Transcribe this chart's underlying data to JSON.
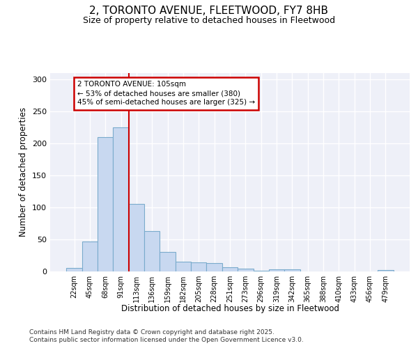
{
  "title": "2, TORONTO AVENUE, FLEETWOOD, FY7 8HB",
  "subtitle": "Size of property relative to detached houses in Fleetwood",
  "xlabel": "Distribution of detached houses by size in Fleetwood",
  "ylabel": "Number of detached properties",
  "bar_color": "#c8d8f0",
  "bar_edge_color": "#7aabcc",
  "background_color": "#eef0f8",
  "grid_color": "#ffffff",
  "categories": [
    "22sqm",
    "45sqm",
    "68sqm",
    "91sqm",
    "113sqm",
    "136sqm",
    "159sqm",
    "182sqm",
    "205sqm",
    "228sqm",
    "251sqm",
    "273sqm",
    "296sqm",
    "319sqm",
    "342sqm",
    "365sqm",
    "388sqm",
    "410sqm",
    "433sqm",
    "456sqm",
    "479sqm"
  ],
  "values": [
    5,
    47,
    210,
    225,
    105,
    63,
    30,
    15,
    14,
    13,
    6,
    4,
    1,
    3,
    3,
    0,
    0,
    0,
    0,
    0,
    2
  ],
  "red_line_x": 3.5,
  "annotation_line1": "2 TORONTO AVENUE: 105sqm",
  "annotation_line2": "← 53% of detached houses are smaller (380)",
  "annotation_line3": "45% of semi-detached houses are larger (325) →",
  "ylim": [
    0,
    310
  ],
  "yticks": [
    0,
    50,
    100,
    150,
    200,
    250,
    300
  ],
  "footer_line1": "Contains HM Land Registry data © Crown copyright and database right 2025.",
  "footer_line2": "Contains public sector information licensed under the Open Government Licence v3.0."
}
